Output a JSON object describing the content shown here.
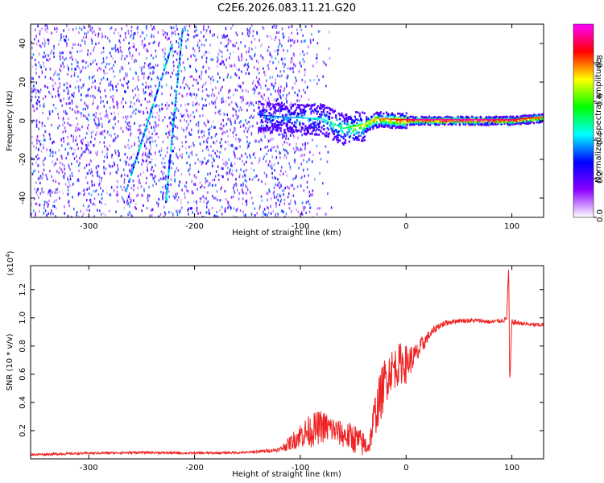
{
  "chart_data": [
    {
      "type": "heatmap",
      "title": "C2E6.2026.083.11.21.G20",
      "xlabel": "Height of straight line (km)",
      "ylabel": "Frequency (Hz)",
      "xlim": [
        -355,
        130
      ],
      "ylim": [
        -50,
        50
      ],
      "x_ticks": [
        -300,
        -200,
        -100,
        0,
        100
      ],
      "x_tick_labels": [
        "-300",
        "-200",
        "-100",
        "0",
        "100"
      ],
      "y_ticks": [
        -40,
        -20,
        0,
        20,
        40
      ],
      "y_tick_labels": [
        "-40",
        "-20",
        "0",
        "20",
        "40"
      ],
      "colorbar": {
        "label": "Normalized spectral amplitude",
        "range": [
          0,
          1
        ],
        "ticks": [
          0.0,
          0.2,
          0.4,
          0.6,
          0.8
        ],
        "tick_labels": [
          "0.0",
          "0.2",
          "0.4",
          "0.6",
          "0.8"
        ],
        "colors": [
          "#ffffff",
          "#8a00ff",
          "#0000ff",
          "#00ffff",
          "#00ff00",
          "#ffff00",
          "#ff0000",
          "#ff00ff"
        ]
      },
      "features": {
        "carrier_track": {
          "x": [
            -140,
            -120,
            -100,
            -80,
            -60,
            -50,
            -40,
            -30,
            -20,
            -10,
            0,
            20,
            50,
            80,
            100,
            130
          ],
          "freq": [
            3,
            2,
            1.5,
            1,
            -4,
            -3,
            -2,
            1,
            1,
            0.5,
            0.5,
            0.5,
            0.5,
            0.5,
            0.5,
            2
          ],
          "amplitude": [
            0.3,
            0.35,
            0.4,
            0.45,
            0.5,
            0.6,
            0.7,
            0.75,
            0.8,
            0.85,
            0.9,
            0.95,
            0.95,
            0.95,
            0.9,
            0.8
          ]
        },
        "streaks": [
          {
            "x": [
              -265,
              -222
            ],
            "freq": [
              -35,
              40
            ]
          },
          {
            "x": [
              -228,
              -212
            ],
            "freq": [
              -42,
              48
            ]
          }
        ],
        "noise_region_x": [
          -355,
          -110
        ]
      }
    },
    {
      "type": "line",
      "title": "",
      "xlabel": "Height of straight line (km)",
      "ylabel": "SNR (10 * v/v)",
      "y_scale_label": "(x10",
      "y_scale_exponent": "4",
      "xlim": [
        -355,
        130
      ],
      "ylim": [
        0,
        13700
      ],
      "x_ticks": [
        -300,
        -200,
        -100,
        0,
        100
      ],
      "x_tick_labels": [
        "-300",
        "-200",
        "-100",
        "0",
        "100"
      ],
      "y_ticks": [
        2000,
        4000,
        6000,
        8000,
        10000,
        12000
      ],
      "y_tick_labels": [
        "0.2",
        "0.4",
        "0.6",
        "0.8",
        "1.0",
        "1.2"
      ],
      "series": [
        {
          "name": "SNR",
          "color": "#ee2222",
          "x": [
            -355,
            -300,
            -250,
            -200,
            -150,
            -120,
            -110,
            -100,
            -90,
            -80,
            -70,
            -60,
            -50,
            -40,
            -35,
            -30,
            -25,
            -20,
            -15,
            -10,
            -5,
            0,
            5,
            10,
            15,
            20,
            25,
            30,
            40,
            50,
            60,
            70,
            80,
            90,
            95,
            97,
            98,
            100,
            110,
            120,
            130
          ],
          "values": [
            300,
            400,
            450,
            400,
            450,
            650,
            1100,
            1700,
            2000,
            2300,
            2100,
            1700,
            1500,
            1000,
            900,
            3000,
            4200,
            5500,
            6300,
            6500,
            6800,
            6700,
            7100,
            7400,
            8000,
            8600,
            9000,
            9400,
            9700,
            9800,
            9800,
            9800,
            9700,
            9800,
            9900,
            13700,
            5200,
            9700,
            9600,
            9500,
            9500
          ],
          "noise_amplitude": [
            80,
            80,
            80,
            80,
            80,
            150,
            500,
            900,
            1200,
            1200,
            1000,
            900,
            1100,
            900,
            600,
            1500,
            1800,
            1800,
            1500,
            1500,
            1500,
            1400,
            1000,
            800,
            700,
            400,
            300,
            250,
            200,
            150,
            150,
            150,
            150,
            150,
            200,
            0,
            0,
            200,
            150,
            150,
            150
          ]
        }
      ]
    }
  ]
}
